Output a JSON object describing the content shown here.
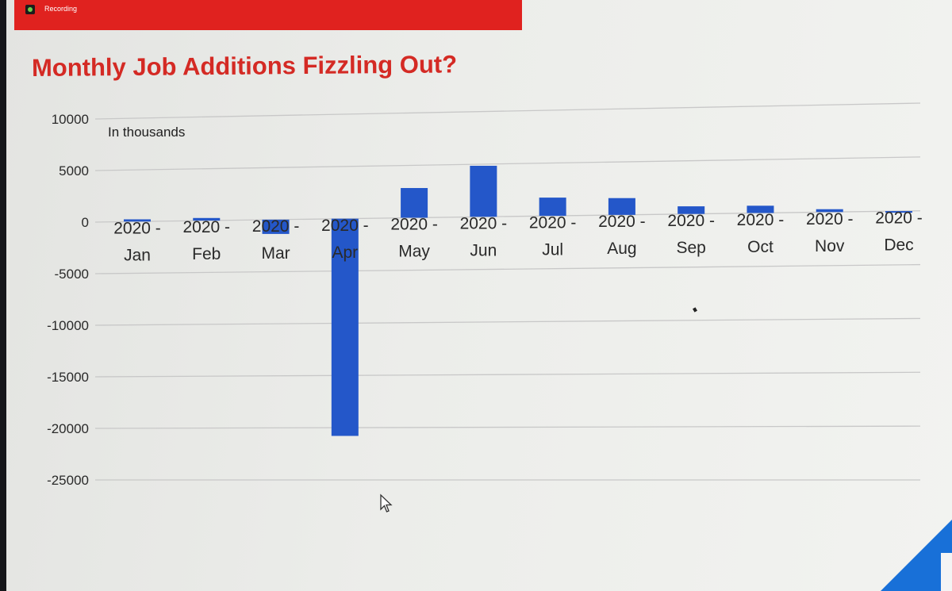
{
  "recording": {
    "label": "Recording"
  },
  "slide": {
    "title": "Monthly Job Additions Fizzling Out?"
  },
  "colors": {
    "bar": "#2457c9",
    "title": "#d42a24",
    "recording_bar": "#e0221f",
    "gridline": "#c8c8c8"
  },
  "chart_data": {
    "type": "bar",
    "title": "Monthly Job Additions Fizzling Out?",
    "unit_label": "In thousands",
    "categories": [
      [
        "2020 -",
        "Jan"
      ],
      [
        "2020 -",
        "Feb"
      ],
      [
        "2020 -",
        "Mar"
      ],
      [
        "2020 -",
        "Apr"
      ],
      [
        "2020 -",
        "May"
      ],
      [
        "2020 -",
        "Jun"
      ],
      [
        "2020 -",
        "Jul"
      ],
      [
        "2020 -",
        "Aug"
      ],
      [
        "2020 -",
        "Sep"
      ],
      [
        "2020 -",
        "Oct"
      ],
      [
        "2020 -",
        "Nov"
      ],
      [
        "2020 -",
        "Dec"
      ]
    ],
    "values": [
      214,
      251,
      -1373,
      -20787,
      2833,
      4846,
      1726,
      1583,
      716,
      680,
      264,
      -140
    ],
    "yticks": [
      10000,
      5000,
      0,
      -5000,
      -10000,
      -15000,
      -20000,
      -25000
    ],
    "ylim": [
      -25000,
      10000
    ],
    "grid": true,
    "legend": "none"
  }
}
